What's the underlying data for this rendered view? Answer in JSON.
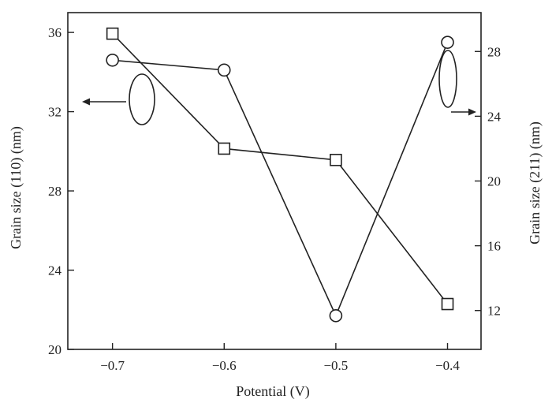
{
  "chart_data": {
    "type": "line",
    "title": "",
    "xlabel": "Potential (V)",
    "ylabel_left": "Grain size (110) (nm)",
    "ylabel_right": "Grain size (211) (nm)",
    "xlim": [
      -0.74,
      -0.37
    ],
    "ylim_left": [
      20,
      37
    ],
    "ylim_right": [
      9.6,
      30.4
    ],
    "x_ticks": [
      -0.7,
      -0.6,
      -0.5,
      -0.4
    ],
    "x_tick_labels": [
      "−0.7",
      "−0.6",
      "−0.5",
      "−0.4"
    ],
    "y_left_ticks": [
      20,
      24,
      28,
      32,
      36
    ],
    "y_left_tick_labels": [
      "20",
      "24",
      "28",
      "32",
      "36"
    ],
    "y_right_ticks": [
      12,
      16,
      20,
      24,
      28
    ],
    "y_right_tick_labels": [
      "12",
      "16",
      "20",
      "24",
      "28"
    ],
    "grid": false,
    "series": [
      {
        "marker": "circle",
        "axis": "left",
        "x": [
          -0.7,
          -0.6,
          -0.5,
          -0.4
        ],
        "values": [
          34.6,
          34.1,
          21.7,
          35.5
        ]
      },
      {
        "marker": "square",
        "axis": "right",
        "x": [
          -0.7,
          -0.6,
          -0.5,
          -0.4
        ],
        "values": [
          29.1,
          22.0,
          21.3,
          12.4
        ]
      }
    ]
  }
}
